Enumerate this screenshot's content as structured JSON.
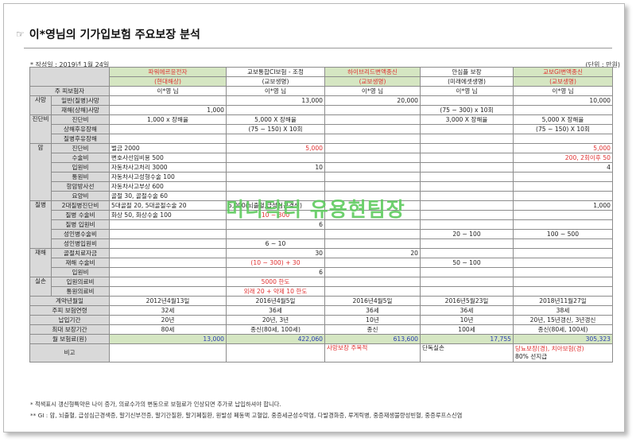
{
  "header": {
    "hand_icon": "☞",
    "title": "이*영님의 기가입보험 주요보장 분석",
    "date": "* 작성일 : 2019년 1월 24일",
    "unit": "(단위 : 만원)"
  },
  "columns": [
    {
      "name": "파워에르윤전자",
      "company": "(현대해상)",
      "red": true
    },
    {
      "name": "교보통합CI보험 - 조정",
      "company": "(교보생명)",
      "red": false
    },
    {
      "name": "하이브리드변액종신",
      "company": "(교보생명)",
      "red": true
    },
    {
      "name": "안심플 보장",
      "company": "(미래에셋생명)",
      "red": false
    },
    {
      "name": "교보GI변액종신",
      "company": "(교보생명)",
      "red": true
    }
  ],
  "rows": {
    "insured_label": "주 피보험자",
    "insured": [
      "이*영 님",
      "이*영 님",
      "이*영 님",
      "이*영 님",
      "이*영 님"
    ],
    "death": {
      "cat": "사망",
      "general_label": "일반(질병)사망",
      "general": [
        "",
        "13,000",
        "20,000",
        "",
        "10,000"
      ],
      "accident_label": "재해(상해)사망",
      "accident": [
        "1,000",
        "",
        "",
        "(75 ~ 300) x 10회",
        ""
      ]
    },
    "diag": {
      "cat": "진단비",
      "diag_label": "진단비",
      "diag": [
        "1,000 x 장해율",
        "5,000 X 장해율",
        "",
        "3,000 X 장해율",
        "5,000 X 장해율"
      ],
      "injury_label": "상해후유장해",
      "injury": [
        "",
        "(75 ~ 150) X 10회",
        "",
        "",
        "(75 ~ 150) X 10회"
      ],
      "disease_label": "질병후유장해"
    },
    "cancer": {
      "cat": "암",
      "labels": [
        "진단비",
        "수술비",
        "입원비",
        "통원비",
        "항암방사선",
        "요양비"
      ],
      "col1_lines": [
        "벌금 2000",
        "변호사선임비용 500",
        "자동차사고처리 3000",
        "자동차사고성형수술 100",
        "자동차사고부상 600",
        "골절 30, 골절수술 60"
      ],
      "col2_diag": "5,000",
      "col2_hosp": "10",
      "col5_diag": "5,000",
      "col5_surg": "200, 2회이후 50",
      "col5_hosp": "4"
    },
    "illness": {
      "cat": "질병",
      "labels": [
        "2대질병진단비",
        "질병 수술비",
        "질병 입원비",
        "성인병수술비",
        "성인병입원비"
      ],
      "col1_lines": [
        "5대골절 20, 5대골절수술 20",
        "화상 50, 화상수술 100"
      ],
      "col2_2dis": "5,000(뇌출혈,급성심근경색)",
      "col2_surg": "10 ~ 300",
      "col2_hosp": "6",
      "col2_adult_hosp": "6 ~ 10",
      "col4_adult_surg": "20 ~ 100",
      "col5_2dis": "1,000",
      "col5_adult_surg": "100 ~ 500"
    },
    "accident": {
      "cat": "재해",
      "labels": [
        "골절치료자금",
        "재해 수술비",
        "입원비"
      ],
      "col2_fract": "30",
      "col2_surg": "(10 ~ 300) + 30",
      "col2_hosp": "6",
      "col3_fract": "20",
      "col4_surg": "50 ~ 100"
    },
    "medical": {
      "cat": "실손",
      "labels": [
        "입원의료비",
        "통원의료비"
      ],
      "col2_lines": [
        "5000 한도",
        "외래 20 + 약제 10 한도"
      ]
    },
    "contract_label": "계약년월일",
    "contract": [
      "2012년4월13일",
      "2016년4월5일",
      "2016년4월5일",
      "2016년5월23일",
      "2018년11월27일"
    ],
    "age_label": "주피 보험연령",
    "age": [
      "32세",
      "36세",
      "36세",
      "36세",
      "38세"
    ],
    "pay_label": "납입기간",
    "pay": [
      "20년",
      "20년, 3년",
      "10년",
      "10년",
      "20년, 15년갱신, 3년갱신"
    ],
    "max_label": "최대 보장기간",
    "max": [
      "80세",
      "종신(80세, 100세)",
      "종신",
      "100세",
      "종신(80세, 100세)"
    ],
    "premium_label": "월 보험료(원)",
    "premium": [
      "13,000",
      "422,060",
      "613,600",
      "17,755",
      "305,323"
    ],
    "note_label": "비고",
    "note3": "사망보장 주목적",
    "note4": "단독실손",
    "note5_line1": "당뇨보장(경), 치아보험(경)",
    "note5_line2": "80% 선지급"
  },
  "footer": {
    "line1": "* 적색표시 갱신형특약은 나이 증가, 의료수가의 변동으로 보험료가 인상되면 추가로 납입하셔야 합니다.",
    "line2": "** GI : 암, 뇌출혈, 급성심근경색증, 말기신부전증, 말기간질환, 말기폐질환, 원발성 폐동맥 고혈압, 중증세균성수막염, 다발경화증, 루게릭병, 중증재생불량성빈혈, 중증루프스신염"
  },
  "watermark": "머니닥터 유용현팀장",
  "colors": {
    "red": "#e03030",
    "blue": "#2a3fb0",
    "green_header": "#d5e6c2",
    "gray": "#d9d9d9",
    "watermark": "#5fcc5f"
  }
}
